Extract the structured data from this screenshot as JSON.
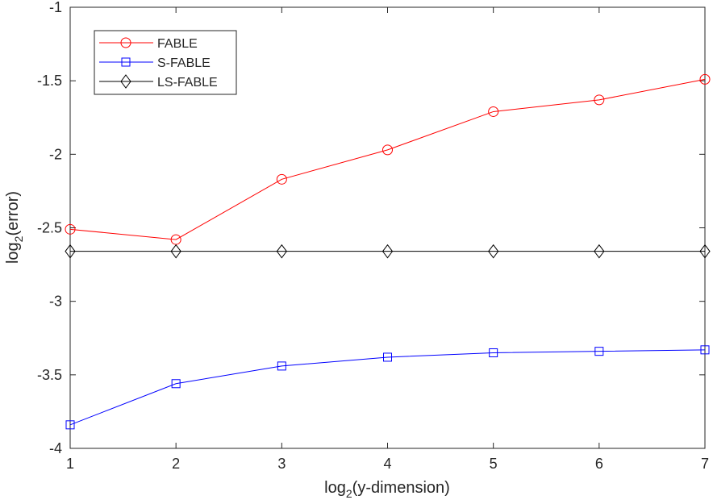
{
  "chart_data": {
    "type": "line",
    "x": [
      1,
      2,
      3,
      4,
      5,
      6,
      7
    ],
    "xlim": [
      1,
      7
    ],
    "ylim": [
      -4,
      -1
    ],
    "xticks": [
      "1",
      "2",
      "3",
      "4",
      "5",
      "6",
      "7"
    ],
    "yticks": [
      "-1",
      "-1.5",
      "-2",
      "-2.5",
      "-3",
      "-3.5",
      "-4"
    ],
    "ytick_values": [
      -1,
      -1.5,
      -2,
      -2.5,
      -3,
      -3.5,
      -4
    ],
    "xlabel_main": "log",
    "xlabel_sub": "2",
    "xlabel_rest": "(y-dimension)",
    "ylabel_main": "log",
    "ylabel_sub": "2",
    "ylabel_rest": "(error)",
    "grid": false,
    "legend_position": "top-left",
    "series": [
      {
        "name": "FABLE",
        "color": "#ff0000",
        "marker": "circle",
        "values": [
          -2.51,
          -2.58,
          -2.17,
          -1.97,
          -1.71,
          -1.63,
          -1.49
        ]
      },
      {
        "name": "S-FABLE",
        "color": "#0000ff",
        "marker": "square",
        "values": [
          -3.84,
          -3.56,
          -3.44,
          -3.38,
          -3.35,
          -3.34,
          -3.33
        ]
      },
      {
        "name": "LS-FABLE",
        "color": "#000000",
        "marker": "diamond",
        "values": [
          -2.66,
          -2.66,
          -2.66,
          -2.66,
          -2.66,
          -2.66,
          -2.66
        ]
      }
    ]
  }
}
